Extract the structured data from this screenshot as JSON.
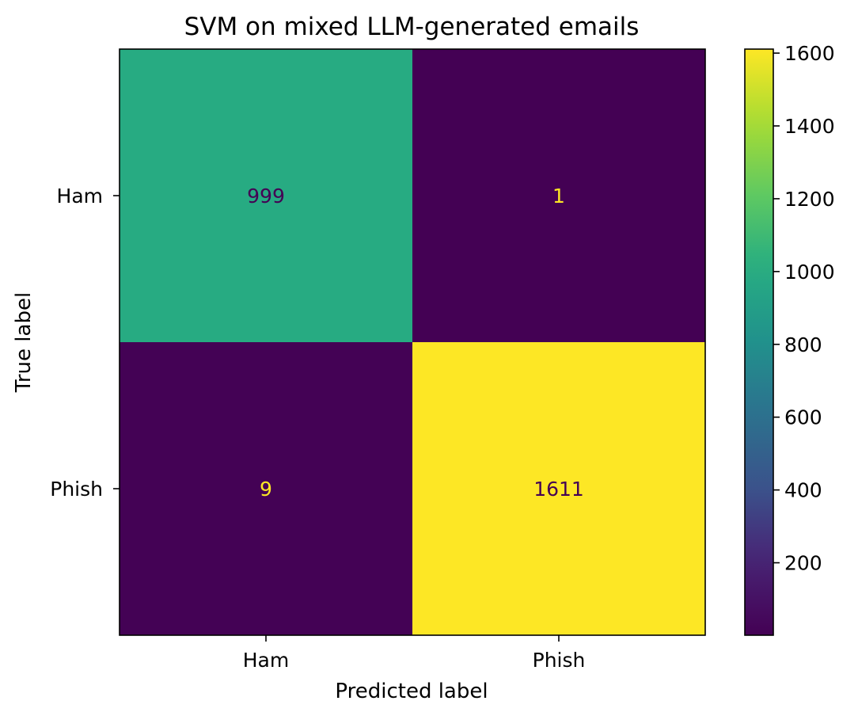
{
  "chart_data": {
    "type": "heatmap",
    "title": "SVM on mixed LLM-generated emails",
    "xlabel": "Predicted label",
    "ylabel": "True label",
    "x_categories": [
      "Ham",
      "Phish"
    ],
    "y_categories": [
      "Ham",
      "Phish"
    ],
    "matrix": [
      [
        999,
        1
      ],
      [
        9,
        1611
      ]
    ],
    "colormap": "viridis",
    "vmin": 1,
    "vmax": 1611,
    "colorbar_ticks": [
      200,
      400,
      600,
      800,
      1000,
      1200,
      1400,
      1600
    ],
    "cell_text_colors": {
      "on_dark": "#fde725",
      "on_light": "#440154"
    }
  }
}
